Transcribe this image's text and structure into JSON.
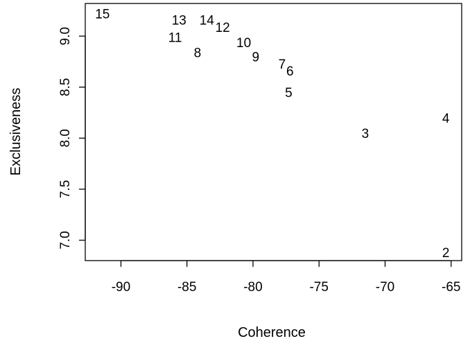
{
  "chart_data": {
    "type": "scatter",
    "title": "",
    "xlabel": "Coherence",
    "ylabel": "Exclusiveness",
    "xlim": [
      -92.7,
      -64.2
    ],
    "ylim": [
      6.8,
      9.32
    ],
    "xticks": [
      -90,
      -85,
      -80,
      -75,
      -70,
      -65
    ],
    "xtick_labels": [
      "-90",
      "-85",
      "-80",
      "-75",
      "-70",
      "-65"
    ],
    "yticks": [
      7.0,
      7.5,
      8.0,
      8.5,
      9.0
    ],
    "ytick_labels": [
      "7.0",
      "7.5",
      "8.0",
      "8.5",
      "9.0"
    ],
    "grid": false,
    "marker": "text",
    "points": [
      {
        "label": "2",
        "x": -65.4,
        "y": 6.88
      },
      {
        "label": "3",
        "x": -71.5,
        "y": 8.05
      },
      {
        "label": "4",
        "x": -65.4,
        "y": 8.2
      },
      {
        "label": "5",
        "x": -77.3,
        "y": 8.45
      },
      {
        "label": "6",
        "x": -77.2,
        "y": 8.66
      },
      {
        "label": "7",
        "x": -77.8,
        "y": 8.73
      },
      {
        "label": "8",
        "x": -84.2,
        "y": 8.84
      },
      {
        "label": "9",
        "x": -79.8,
        "y": 8.8
      },
      {
        "label": "10",
        "x": -80.7,
        "y": 8.94
      },
      {
        "label": "11",
        "x": -85.9,
        "y": 8.99
      },
      {
        "label": "12",
        "x": -82.3,
        "y": 9.09
      },
      {
        "label": "13",
        "x": -85.6,
        "y": 9.16
      },
      {
        "label": "14",
        "x": -83.5,
        "y": 9.16
      },
      {
        "label": "15",
        "x": -91.4,
        "y": 9.22
      }
    ]
  }
}
